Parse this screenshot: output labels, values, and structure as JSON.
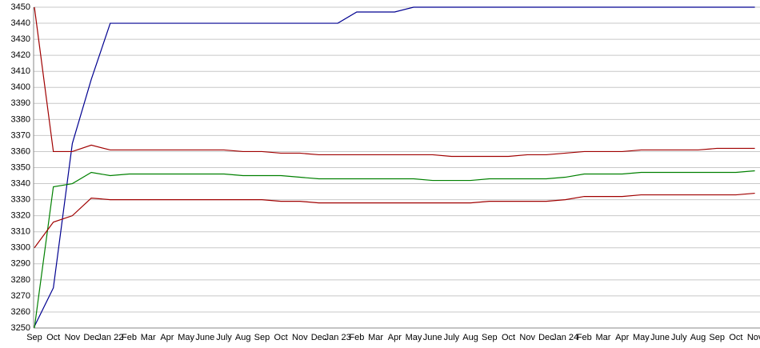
{
  "chart_data": {
    "type": "line",
    "categories": [
      "Sep",
      "Oct",
      "Nov",
      "Dec",
      "Jan 22",
      "Feb",
      "Mar",
      "Apr",
      "May",
      "June",
      "July",
      "Aug",
      "Sep",
      "Oct",
      "Nov",
      "Dec",
      "Jan 23",
      "Feb",
      "Mar",
      "Apr",
      "May",
      "June",
      "July",
      "Aug",
      "Sep",
      "Oct",
      "Nov",
      "Dec",
      "Jan 24",
      "Feb",
      "Mar",
      "Apr",
      "May",
      "June",
      "July",
      "Aug",
      "Sep",
      "Oct",
      "Nov"
    ],
    "series": [
      {
        "color": "#000090",
        "values": [
          3251,
          3275,
          3365,
          3405,
          3440,
          3440,
          3440,
          3440,
          3440,
          3440,
          3440,
          3440,
          3440,
          3440,
          3440,
          3440,
          3440,
          3447,
          3447,
          3447,
          3450,
          3450,
          3450,
          3450,
          3450,
          3450,
          3450,
          3450,
          3450,
          3450,
          3450,
          3450,
          3450,
          3450,
          3450,
          3450,
          3450,
          3450,
          3450
        ]
      },
      {
        "color": "#008000",
        "values": [
          3250,
          3338,
          3340,
          3347,
          3345,
          3346,
          3346,
          3346,
          3346,
          3346,
          3346,
          3345,
          3345,
          3345,
          3344,
          3343,
          3343,
          3343,
          3343,
          3343,
          3343,
          3342,
          3342,
          3342,
          3343,
          3343,
          3343,
          3343,
          3344,
          3346,
          3346,
          3346,
          3347,
          3347,
          3347,
          3347,
          3347,
          3347,
          3348
        ]
      },
      {
        "color": "#a00000",
        "values": [
          3450,
          3360,
          3360,
          3364,
          3361,
          3361,
          3361,
          3361,
          3361,
          3361,
          3361,
          3360,
          3360,
          3359,
          3359,
          3358,
          3358,
          3358,
          3358,
          3358,
          3358,
          3358,
          3357,
          3357,
          3357,
          3357,
          3358,
          3358,
          3359,
          3360,
          3360,
          3360,
          3361,
          3361,
          3361,
          3361,
          3362,
          3362,
          3362
        ]
      },
      {
        "color": "#a00000",
        "values": [
          3300,
          3316,
          3320,
          3331,
          3330,
          3330,
          3330,
          3330,
          3330,
          3330,
          3330,
          3330,
          3330,
          3329,
          3329,
          3328,
          3328,
          3328,
          3328,
          3328,
          3328,
          3328,
          3328,
          3328,
          3329,
          3329,
          3329,
          3329,
          3330,
          3332,
          3332,
          3332,
          3333,
          3333,
          3333,
          3333,
          3333,
          3333,
          3334
        ]
      }
    ],
    "ylim": [
      3250,
      3450
    ],
    "yticks": [
      3250,
      3260,
      3270,
      3280,
      3290,
      3300,
      3310,
      3320,
      3330,
      3340,
      3350,
      3360,
      3370,
      3380,
      3390,
      3400,
      3410,
      3420,
      3430,
      3440,
      3450
    ],
    "grid": true
  }
}
